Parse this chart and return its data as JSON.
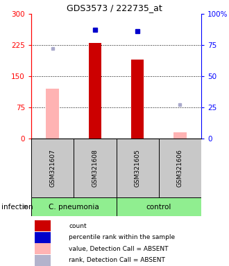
{
  "title": "GDS3573 / 222735_at",
  "samples": [
    "GSM321607",
    "GSM321608",
    "GSM321605",
    "GSM321606"
  ],
  "group1_name": "C. pneumonia",
  "group2_name": "control",
  "bar_values": [
    null,
    230,
    190,
    null
  ],
  "bar_values_absent": [
    120,
    null,
    null,
    15
  ],
  "dot_values_present": [
    null,
    87,
    86,
    null
  ],
  "dot_values_absent": [
    72,
    null,
    null,
    27
  ],
  "ylim_left": [
    0,
    300
  ],
  "ylim_right": [
    0,
    100
  ],
  "yticks_left": [
    0,
    75,
    150,
    225,
    300
  ],
  "yticks_right": [
    0,
    25,
    50,
    75,
    100
  ],
  "ytick_labels_right": [
    "0",
    "25",
    "50",
    "75",
    "100%"
  ],
  "hlines": [
    75,
    150,
    225
  ],
  "group_label": "infection",
  "legend_labels": [
    "count",
    "percentile rank within the sample",
    "value, Detection Call = ABSENT",
    "rank, Detection Call = ABSENT"
  ],
  "legend_colors": [
    "#cc0000",
    "#0000cc",
    "#ffb3b3",
    "#b3b3cc"
  ],
  "bar_color_present": "#cc0000",
  "bar_color_absent": "#ffb3b3",
  "dot_color_present": "#0000cc",
  "dot_color_absent": "#aaaacc",
  "group1_color": "#90ee90",
  "group2_color": "#90ee90",
  "xtick_bg": "#c8c8c8",
  "bar_width": 0.3
}
